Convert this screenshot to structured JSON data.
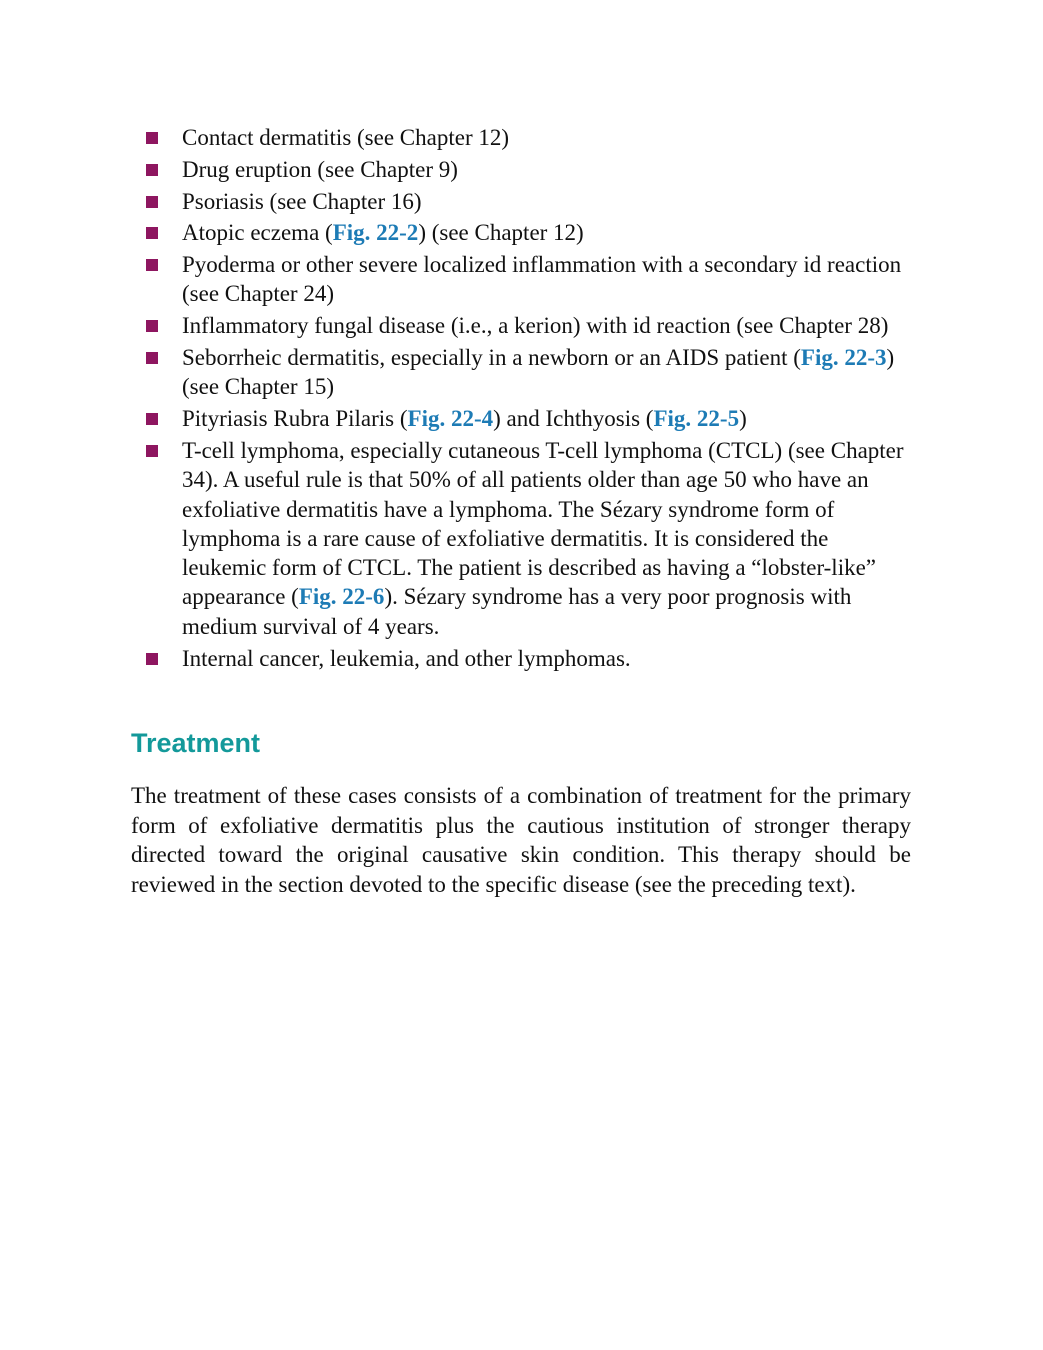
{
  "list": [
    [
      "Contact dermatitis (see Chapter 12)"
    ],
    [
      "Drug eruption (see Chapter 9)"
    ],
    [
      "Psoriasis (see Chapter 16)"
    ],
    [
      "Atopic eczema (",
      "Fig. 22-2",
      ") (see Chapter 12)"
    ],
    [
      "Pyoderma or other severe localized inflammation with a secondary id reaction (see Chapter 24)"
    ],
    [
      "Inflammatory fungal disease (i.e., a kerion) with id reaction (see Chapter 28)"
    ],
    [
      "Seborrheic dermatitis, especially in a newborn or an AIDS patient (",
      "Fig. 22-3",
      ") (see Chapter 15)"
    ],
    [
      "Pityriasis Rubra Pilaris (",
      "Fig. 22-4",
      ") and Ichthyosis (",
      "Fig. 22-5",
      ")"
    ],
    [
      "T-cell lymphoma, especially cutaneous T-cell lymphoma (CTCL) (see Chapter 34). A useful rule is that 50% of all patients older than age 50 who have an exfoliative dermatitis have a lymphoma. The Sézary syndrome form of lymphoma is a rare cause of exfoliative dermatitis. It is considered the leukemic form of CTCL. The patient is described as having a “lobster-like” appearance (",
      "Fig. 22-6",
      "). Sézary syndrome has a very poor prognosis with medium survival of 4 years."
    ],
    [
      "Internal cancer, leukemia, and other lymphomas."
    ]
  ],
  "heading": "Treatment",
  "paragraph": "The treatment of these cases consists of a combination of treatment for the primary form of exfoliative dermatitis plus the cautious institution of stronger therapy directed toward the original causative skin condition. This therapy should be reviewed in the section devoted to the specific disease (see the preceding text)."
}
